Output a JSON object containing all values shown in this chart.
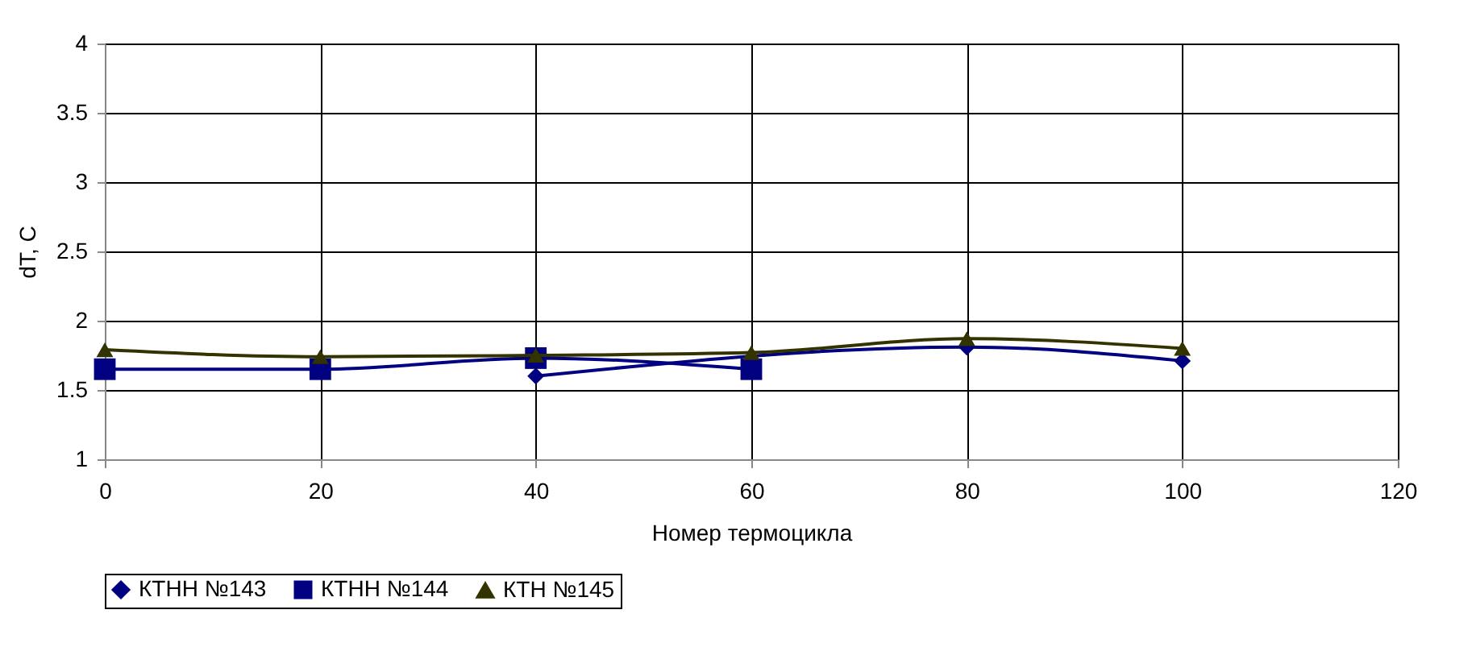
{
  "chart_data": {
    "type": "line",
    "xlabel": "Номер термоцикла",
    "ylabel": "dT, C",
    "x": [
      0,
      20,
      40,
      60,
      80,
      100
    ],
    "series": [
      {
        "name": "КТНН №143",
        "color": "#000080",
        "marker": "diamond",
        "values": [
          null,
          null,
          1.6,
          null,
          1.81,
          1.71
        ]
      },
      {
        "name": "КТНН №144",
        "color": "#000080",
        "marker": "square",
        "values": [
          1.65,
          1.65,
          1.73,
          1.65,
          null,
          null
        ]
      },
      {
        "name": "КТН №145",
        "color": "#333300",
        "marker": "triangle",
        "values": [
          1.79,
          1.74,
          1.75,
          1.77,
          1.87,
          1.8
        ]
      }
    ],
    "xlim": [
      0,
      120
    ],
    "xticks": [
      0,
      20,
      40,
      60,
      80,
      100,
      120
    ],
    "ylim": [
      1,
      4
    ],
    "yticks": [
      1,
      1.5,
      2,
      2.5,
      3,
      3.5,
      4
    ],
    "grid": true,
    "legend": "bottom",
    "line_style": "solid"
  }
}
